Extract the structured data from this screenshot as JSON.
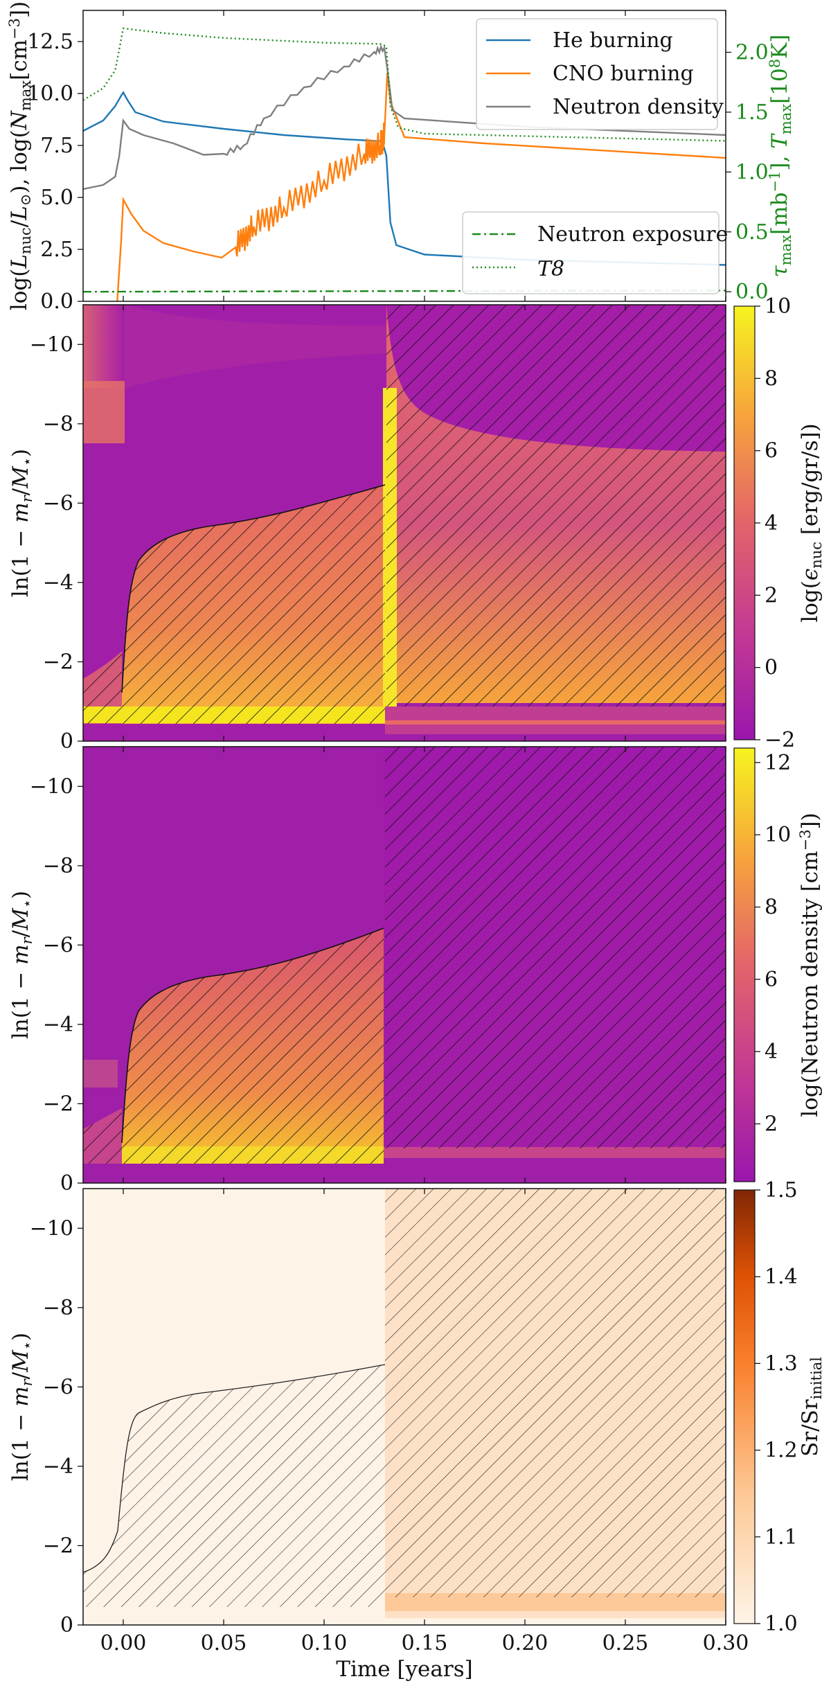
{
  "x_axis": {
    "label": "Time [years]",
    "range": [
      -0.02,
      0.3
    ],
    "ticks": [
      "0.00",
      "0.05",
      "0.10",
      "0.15",
      "0.20",
      "0.25",
      "0.30"
    ]
  },
  "colors": {
    "he": "#1f77b4",
    "cno": "#ff7f0e",
    "neutron": "#7f7f7f",
    "green": "#1a8a1a",
    "hatch": "#111111"
  },
  "chart_data": [
    {
      "type": "line",
      "panel": "top",
      "ylabel_left": "log(L_nuc/L_⊙), log(N_max[cm^-3])",
      "ylabel_right": "τ_max[mb^-1], T_max[10^8K]",
      "ylim": [
        0,
        14
      ],
      "ylim_right": [
        -0.08,
        2.35
      ],
      "yticks": [
        "0.0",
        "2.5",
        "5.0",
        "7.5",
        "10.0",
        "12.5"
      ],
      "yticks_right": [
        "0.0",
        "0.5",
        "1.0",
        "1.5",
        "2.0"
      ],
      "legend_upper": [
        "He burning",
        "CNO burning",
        "Neutron density"
      ],
      "legend_lower": [
        "Neutron exposure",
        "T8"
      ],
      "series": [
        {
          "name": "He burning",
          "axis": "left",
          "points": [
            [
              -0.02,
              8.2
            ],
            [
              -0.01,
              8.7
            ],
            [
              -0.004,
              9.4
            ],
            [
              -0.001,
              9.9
            ],
            [
              0.0,
              10.05
            ],
            [
              0.002,
              9.7
            ],
            [
              0.006,
              9.1
            ],
            [
              0.02,
              8.65
            ],
            [
              0.05,
              8.3
            ],
            [
              0.08,
              8.0
            ],
            [
              0.11,
              7.8
            ],
            [
              0.129,
              7.7
            ],
            [
              0.131,
              7.0
            ],
            [
              0.133,
              3.8
            ],
            [
              0.136,
              2.7
            ],
            [
              0.15,
              2.25
            ],
            [
              0.2,
              2.0
            ],
            [
              0.3,
              1.75
            ]
          ]
        },
        {
          "name": "CNO burning",
          "axis": "left",
          "points": [
            [
              -0.003,
              0.0
            ],
            [
              -0.001,
              3.0
            ],
            [
              0.0,
              4.9
            ],
            [
              0.004,
              4.2
            ],
            [
              0.01,
              3.4
            ],
            [
              0.02,
              2.8
            ],
            [
              0.035,
              2.4
            ],
            [
              0.049,
              2.1
            ],
            [
              0.056,
              2.6
            ],
            [
              0.065,
              3.6
            ],
            [
              0.08,
              4.5
            ],
            [
              0.1,
              5.8
            ],
            [
              0.12,
              7.1
            ],
            [
              0.128,
              7.5
            ],
            [
              0.13,
              8.0
            ],
            [
              0.1315,
              11.0
            ],
            [
              0.133,
              9.6
            ],
            [
              0.14,
              7.9
            ],
            [
              0.18,
              7.6
            ],
            [
              0.3,
              6.9
            ]
          ]
        },
        {
          "name": "Neutron density",
          "axis": "left",
          "points": [
            [
              -0.02,
              5.4
            ],
            [
              -0.01,
              5.6
            ],
            [
              -0.004,
              6.0
            ],
            [
              -0.002,
              7.0
            ],
            [
              0.0,
              8.7
            ],
            [
              0.003,
              8.3
            ],
            [
              0.01,
              8.0
            ],
            [
              0.025,
              7.6
            ],
            [
              0.04,
              7.05
            ],
            [
              0.05,
              7.1
            ],
            [
              0.06,
              7.5
            ],
            [
              0.07,
              8.8
            ],
            [
              0.09,
              10.3
            ],
            [
              0.11,
              11.3
            ],
            [
              0.125,
              12.0
            ],
            [
              0.13,
              12.2
            ],
            [
              0.1315,
              11.2
            ],
            [
              0.134,
              9.2
            ],
            [
              0.14,
              8.8
            ],
            [
              0.2,
              8.4
            ],
            [
              0.3,
              8.0
            ]
          ]
        },
        {
          "name": "T8",
          "axis": "right",
          "points": [
            [
              -0.02,
              1.6
            ],
            [
              -0.01,
              1.7
            ],
            [
              -0.004,
              1.85
            ],
            [
              0.0,
              2.2
            ],
            [
              0.005,
              2.19
            ],
            [
              0.02,
              2.16
            ],
            [
              0.05,
              2.12
            ],
            [
              0.1,
              2.08
            ],
            [
              0.128,
              2.07
            ],
            [
              0.131,
              2.05
            ],
            [
              0.133,
              1.55
            ],
            [
              0.137,
              1.37
            ],
            [
              0.15,
              1.32
            ],
            [
              0.3,
              1.26
            ]
          ]
        },
        {
          "name": "Neutron exposure",
          "axis": "right",
          "points": [
            [
              -0.02,
              0.0
            ],
            [
              0.13,
              0.005
            ],
            [
              0.3,
              0.01
            ]
          ]
        }
      ]
    },
    {
      "type": "heatmap",
      "panel": "energy",
      "ylabel": "ln(1 − m_r/M_⋆)",
      "ylim": [
        0,
        -11
      ],
      "yticks": [
        "0",
        "−2",
        "−4",
        "−6",
        "−8",
        "−10"
      ],
      "colorbar_label": "log(ε_nuc [erg/gr/s])",
      "colorbar_range": [
        -2,
        10
      ],
      "colorbar_ticks": [
        "−2",
        "0",
        "2",
        "4",
        "6",
        "8",
        "10"
      ]
    },
    {
      "type": "heatmap",
      "panel": "neutron",
      "ylabel": "ln(1 − m_r/M_⋆)",
      "ylim": [
        0,
        -11
      ],
      "yticks": [
        "0",
        "−2",
        "−4",
        "−6",
        "−8",
        "−10"
      ],
      "colorbar_label": "log(Neutron density [cm^-3])",
      "colorbar_range": [
        0.4,
        12.4
      ],
      "colorbar_ticks": [
        "2",
        "4",
        "6",
        "8",
        "10",
        "12"
      ]
    },
    {
      "type": "heatmap",
      "panel": "sr",
      "ylabel": "ln(1 − m_r/M_⋆)",
      "ylim": [
        0,
        -11
      ],
      "yticks": [
        "0",
        "−2",
        "−4",
        "−6",
        "−8",
        "−10"
      ],
      "colorbar_label": "Sr/Sr_initial",
      "colorbar_range": [
        1.0,
        1.5
      ],
      "colorbar_ticks": [
        "1.0",
        "1.1",
        "1.2",
        "1.3",
        "1.4",
        "1.5"
      ]
    }
  ]
}
